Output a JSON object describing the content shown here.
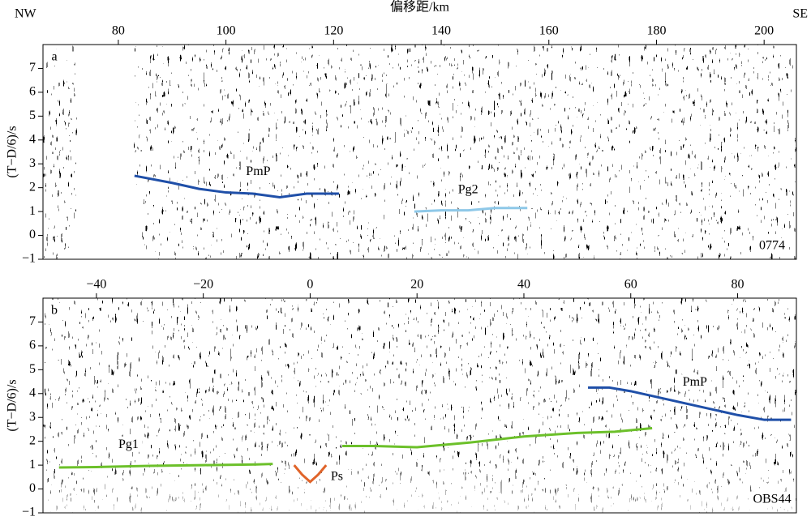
{
  "chart_data": [
    {
      "type": "line",
      "x_label": "偏移距/km",
      "left_label": "NW",
      "right_label": "SE",
      "y_label": "(T−D/6)/s",
      "panel_label": "a",
      "station": "0774",
      "xlim": [
        66,
        206
      ],
      "ylim": [
        -1,
        8
      ],
      "xticks": [
        80,
        100,
        120,
        140,
        160,
        180,
        200
      ],
      "yticks": [
        {
          "value": -1,
          "label": "−1"
        },
        0,
        1,
        2,
        3,
        4,
        5,
        6,
        7
      ],
      "series": [
        {
          "name": "PmP",
          "color": "#1f4fa8",
          "x": [
            83,
            90,
            95,
            100,
            105,
            110,
            115,
            121
          ],
          "values": [
            2.5,
            2.2,
            1.95,
            1.8,
            1.75,
            1.6,
            1.75,
            1.75
          ]
        },
        {
          "name": "Pg2",
          "color": "#8ec8e8",
          "x": [
            135,
            140,
            145,
            150,
            156
          ],
          "values": [
            1.0,
            1.05,
            1.05,
            1.15,
            1.15
          ]
        }
      ]
    },
    {
      "type": "line",
      "y_label": "(T−D/6)/s",
      "panel_label": "b",
      "station": "OBS44",
      "xlim": [
        -50,
        91
      ],
      "ylim": [
        -1,
        8
      ],
      "xticks": [
        {
          "value": -40,
          "label": "−40"
        },
        {
          "value": -20,
          "label": "−20"
        },
        0,
        20,
        40,
        60,
        80
      ],
      "yticks": [
        {
          "value": -1,
          "label": "−1"
        },
        0,
        1,
        2,
        3,
        4,
        5,
        6,
        7
      ],
      "series": [
        {
          "name": "Pg1",
          "color": "#6cc02a",
          "x": [
            -47,
            -40,
            -30,
            -20,
            -10,
            -7
          ],
          "values": [
            0.9,
            0.92,
            0.97,
            1.0,
            1.03,
            1.05
          ]
        },
        {
          "name": "Ps",
          "color": "#e0642a",
          "x": [
            -3,
            -1.5,
            0,
            1.5,
            3
          ],
          "values": [
            1.0,
            0.6,
            0.3,
            0.6,
            1.0
          ]
        },
        {
          "name": "PmP",
          "color": "#1f4fa8",
          "x": [
            52,
            56,
            60,
            65,
            70,
            75,
            80,
            85,
            90
          ],
          "values": [
            4.25,
            4.25,
            4.1,
            3.85,
            3.6,
            3.35,
            3.1,
            2.9,
            2.9
          ]
        },
        {
          "name": "",
          "color": "#6cc02a",
          "x": [
            6,
            12,
            20,
            30,
            40,
            50,
            57,
            64
          ],
          "values": [
            1.8,
            1.8,
            1.75,
            1.95,
            2.2,
            2.35,
            2.4,
            2.55
          ]
        }
      ]
    }
  ]
}
